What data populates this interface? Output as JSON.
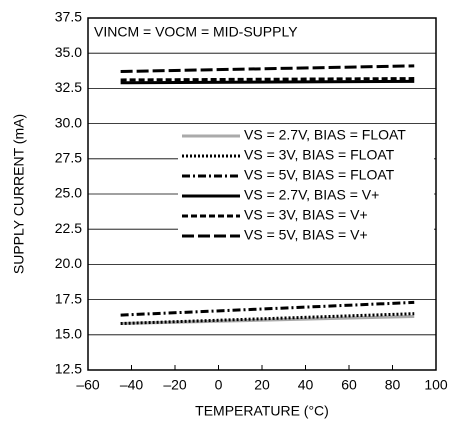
{
  "chart_data": {
    "type": "line",
    "annotation": "VINCM = VOCM = MID-SUPPLY",
    "xlabel": "TEMPERATURE (°C)",
    "ylabel": "SUPPLY CURRENT (mA)",
    "x": [
      -45,
      90
    ],
    "series": [
      {
        "name": "VS = 2.7V, BIAS = FLOAT",
        "color": "#aaaaaa",
        "style": "solid",
        "values": [
          15.8,
          16.3
        ]
      },
      {
        "name": "VS = 3V, BIAS = FLOAT",
        "color": "#000000",
        "style": "dotted",
        "values": [
          15.8,
          16.5
        ]
      },
      {
        "name": "VS = 5V, BIAS = FLOAT",
        "color": "#000000",
        "style": "dashdot",
        "values": [
          16.4,
          17.3
        ]
      },
      {
        "name": "VS = 2.7V, BIAS = V+",
        "color": "#000000",
        "style": "solid",
        "values": [
          32.9,
          33.0
        ]
      },
      {
        "name": "VS = 3V, BIAS = V+",
        "color": "#000000",
        "style": "dashed",
        "values": [
          33.1,
          33.2
        ]
      },
      {
        "name": "VS = 5V, BIAS = V+",
        "color": "#000000",
        "style": "longdash",
        "values": [
          33.7,
          34.1
        ]
      }
    ],
    "xlim": [
      -60,
      100
    ],
    "xticks": [
      {
        "value": -60,
        "label": "–60"
      },
      {
        "value": -40,
        "label": "–40"
      },
      {
        "value": -20,
        "label": "–20"
      },
      0,
      20,
      40,
      60,
      80,
      100
    ],
    "ylim": [
      12.5,
      37.5
    ],
    "yticks": [
      12.5,
      {
        "value": 15,
        "label": "15.0"
      },
      17.5,
      {
        "value": 20,
        "label": "20.0"
      },
      22.5,
      {
        "value": 25,
        "label": "25.0"
      },
      27.5,
      {
        "value": 30,
        "label": "30.0"
      },
      32.5,
      {
        "value": 35,
        "label": "35.0"
      },
      37.5
    ],
    "grid": true,
    "legend": "right"
  }
}
